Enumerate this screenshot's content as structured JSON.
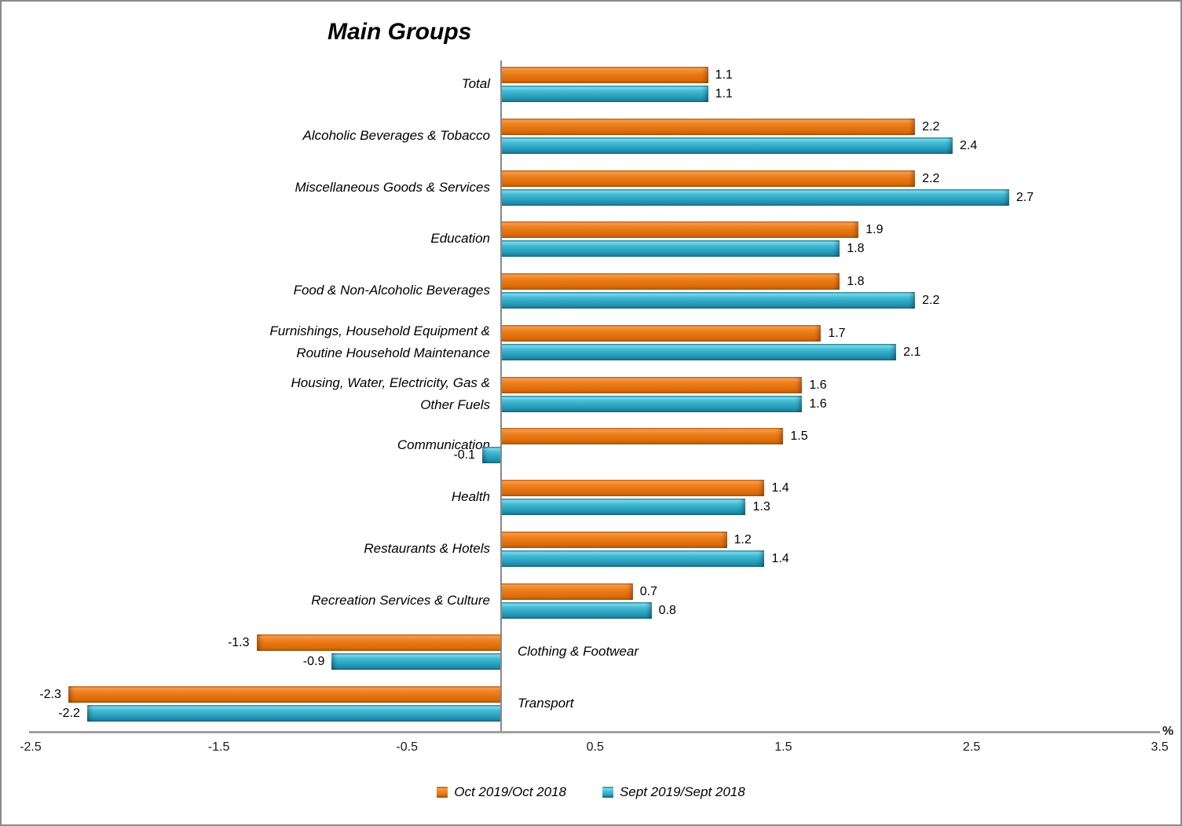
{
  "title": "Main Groups",
  "axis": {
    "unit_label": "%",
    "ticks": [
      -2.5,
      -1.5,
      -0.5,
      0.5,
      1.5,
      2.5,
      3.5
    ]
  },
  "legend": {
    "items": [
      {
        "label": "Oct 2019/Oct 2018",
        "color": "#E8750F"
      },
      {
        "label": "Sept 2019/Sept 2018",
        "color": "#2FA9C6"
      }
    ]
  },
  "chart_data": {
    "type": "bar",
    "orientation": "horizontal",
    "title": "Main Groups",
    "xlabel": "%",
    "xlim": [
      -2.5,
      3.5
    ],
    "grid": false,
    "legend_position": "bottom",
    "categories": [
      "Total",
      "Alcoholic Beverages  & Tobacco",
      "Miscellaneous Goods & Services",
      "Education",
      "Food & Non-Alcoholic Beverages",
      "Furnishings, Household Equipment &\nRoutine Household Maintenance",
      "Housing, Water, Electricity, Gas &\nOther Fuels",
      "Communication",
      "Health",
      "Restaurants & Hotels",
      "Recreation Services & Culture",
      "Clothing & Footwear",
      "Transport"
    ],
    "series": [
      {
        "name": "Oct 2019/Oct 2018",
        "color": "#E8750F",
        "values": [
          1.1,
          2.2,
          2.2,
          1.9,
          1.8,
          1.7,
          1.6,
          1.5,
          1.4,
          1.2,
          0.7,
          -1.3,
          -2.3
        ]
      },
      {
        "name": "Sept 2019/Sept 2018",
        "color": "#2FA9C6",
        "values": [
          1.1,
          2.4,
          2.7,
          1.8,
          2.2,
          2.1,
          1.6,
          -0.1,
          1.3,
          1.4,
          0.8,
          -0.9,
          -2.2
        ]
      }
    ]
  }
}
